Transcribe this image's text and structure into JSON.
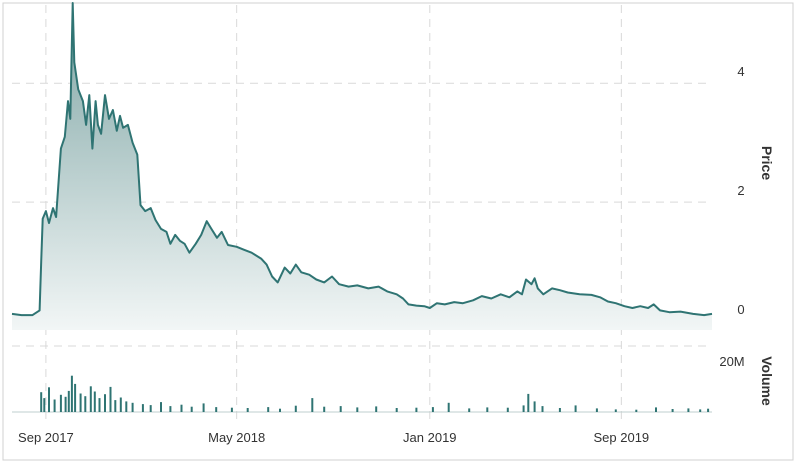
{
  "chart_data": {
    "type": "area",
    "title": "",
    "x_axis": {
      "type": "date",
      "ticks": [
        {
          "date": "2017-09-01",
          "label": "Sep 2017"
        },
        {
          "date": "2018-05-01",
          "label": "May 2018"
        },
        {
          "date": "2019-01-01",
          "label": "Jan 2019"
        },
        {
          "date": "2019-09-01",
          "label": "Sep 2019"
        }
      ],
      "range": [
        "2017-07-20",
        "2019-12-25"
      ],
      "grid": true
    },
    "price_axis": {
      "label": "Price",
      "position": "right",
      "range": [
        -0.15,
        5.4
      ],
      "ticks": [
        {
          "value": 0,
          "label": "0"
        },
        {
          "value": 2,
          "label": "2"
        },
        {
          "value": 4,
          "label": "4"
        }
      ],
      "grid": true
    },
    "volume_axis": {
      "label": "Volume",
      "position": "right",
      "range": [
        0,
        20000000
      ],
      "ticks": [
        {
          "value": 20000000,
          "label": "20M"
        }
      ]
    },
    "colors": {
      "line": "#2f7473",
      "area_top": "#7ea5a4",
      "area_bottom": "#f2f6f6",
      "volume": "#2f7473"
    },
    "series": [
      {
        "kind": "price",
        "points": [
          [
            "2017-07-20",
            0.12
          ],
          [
            "2017-08-01",
            0.1
          ],
          [
            "2017-08-15",
            0.1
          ],
          [
            "2017-08-24",
            0.18
          ],
          [
            "2017-08-26",
            1.0
          ],
          [
            "2017-08-28",
            1.72
          ],
          [
            "2017-09-01",
            1.85
          ],
          [
            "2017-09-05",
            1.65
          ],
          [
            "2017-09-10",
            1.9
          ],
          [
            "2017-09-14",
            1.75
          ],
          [
            "2017-09-20",
            2.9
          ],
          [
            "2017-09-25",
            3.1
          ],
          [
            "2017-09-29",
            3.7
          ],
          [
            "2017-10-02",
            3.4
          ],
          [
            "2017-10-05",
            5.35
          ],
          [
            "2017-10-07",
            4.35
          ],
          [
            "2017-10-12",
            3.9
          ],
          [
            "2017-10-18",
            3.7
          ],
          [
            "2017-10-22",
            3.3
          ],
          [
            "2017-10-26",
            3.8
          ],
          [
            "2017-10-30",
            2.9
          ],
          [
            "2017-11-03",
            3.7
          ],
          [
            "2017-11-06",
            3.3
          ],
          [
            "2017-11-10",
            3.15
          ],
          [
            "2017-11-15",
            3.8
          ],
          [
            "2017-11-20",
            3.4
          ],
          [
            "2017-11-25",
            3.55
          ],
          [
            "2017-11-30",
            3.2
          ],
          [
            "2017-12-04",
            3.45
          ],
          [
            "2017-12-08",
            3.25
          ],
          [
            "2017-12-14",
            3.3
          ],
          [
            "2017-12-20",
            3.0
          ],
          [
            "2017-12-26",
            2.8
          ],
          [
            "2017-12-30",
            1.95
          ],
          [
            "2018-01-05",
            1.85
          ],
          [
            "2018-01-12",
            1.9
          ],
          [
            "2018-01-18",
            1.7
          ],
          [
            "2018-01-25",
            1.55
          ],
          [
            "2018-02-01",
            1.5
          ],
          [
            "2018-02-06",
            1.3
          ],
          [
            "2018-02-12",
            1.45
          ],
          [
            "2018-02-18",
            1.35
          ],
          [
            "2018-02-24",
            1.3
          ],
          [
            "2018-03-02",
            1.15
          ],
          [
            "2018-03-10",
            1.3
          ],
          [
            "2018-03-17",
            1.45
          ],
          [
            "2018-03-24",
            1.68
          ],
          [
            "2018-03-30",
            1.55
          ],
          [
            "2018-04-06",
            1.4
          ],
          [
            "2018-04-12",
            1.5
          ],
          [
            "2018-04-20",
            1.28
          ],
          [
            "2018-05-01",
            1.25
          ],
          [
            "2018-05-10",
            1.2
          ],
          [
            "2018-05-20",
            1.15
          ],
          [
            "2018-06-01",
            1.05
          ],
          [
            "2018-06-08",
            0.95
          ],
          [
            "2018-06-15",
            0.75
          ],
          [
            "2018-06-22",
            0.65
          ],
          [
            "2018-07-01",
            0.9
          ],
          [
            "2018-07-08",
            0.8
          ],
          [
            "2018-07-15",
            0.95
          ],
          [
            "2018-07-22",
            0.82
          ],
          [
            "2018-08-01",
            0.78
          ],
          [
            "2018-08-10",
            0.7
          ],
          [
            "2018-08-20",
            0.65
          ],
          [
            "2018-08-30",
            0.75
          ],
          [
            "2018-09-08",
            0.62
          ],
          [
            "2018-09-20",
            0.58
          ],
          [
            "2018-10-01",
            0.6
          ],
          [
            "2018-10-15",
            0.55
          ],
          [
            "2018-10-28",
            0.58
          ],
          [
            "2018-11-08",
            0.5
          ],
          [
            "2018-11-20",
            0.45
          ],
          [
            "2018-11-28",
            0.38
          ],
          [
            "2018-12-05",
            0.28
          ],
          [
            "2018-12-15",
            0.26
          ],
          [
            "2018-12-25",
            0.25
          ],
          [
            "2019-01-01",
            0.22
          ],
          [
            "2019-01-10",
            0.3
          ],
          [
            "2019-01-20",
            0.28
          ],
          [
            "2019-02-01",
            0.32
          ],
          [
            "2019-02-12",
            0.3
          ],
          [
            "2019-02-25",
            0.35
          ],
          [
            "2019-03-08",
            0.42
          ],
          [
            "2019-03-20",
            0.38
          ],
          [
            "2019-04-01",
            0.45
          ],
          [
            "2019-04-12",
            0.4
          ],
          [
            "2019-04-22",
            0.5
          ],
          [
            "2019-04-28",
            0.45
          ],
          [
            "2019-05-03",
            0.7
          ],
          [
            "2019-05-10",
            0.62
          ],
          [
            "2019-05-14",
            0.72
          ],
          [
            "2019-05-18",
            0.55
          ],
          [
            "2019-05-25",
            0.45
          ],
          [
            "2019-06-05",
            0.55
          ],
          [
            "2019-06-15",
            0.52
          ],
          [
            "2019-06-25",
            0.48
          ],
          [
            "2019-07-10",
            0.45
          ],
          [
            "2019-07-25",
            0.44
          ],
          [
            "2019-08-05",
            0.4
          ],
          [
            "2019-08-15",
            0.33
          ],
          [
            "2019-08-25",
            0.3
          ],
          [
            "2019-09-05",
            0.25
          ],
          [
            "2019-09-15",
            0.22
          ],
          [
            "2019-09-25",
            0.25
          ],
          [
            "2019-10-05",
            0.22
          ],
          [
            "2019-10-12",
            0.28
          ],
          [
            "2019-10-20",
            0.18
          ],
          [
            "2019-11-01",
            0.15
          ],
          [
            "2019-11-15",
            0.16
          ],
          [
            "2019-12-01",
            0.12
          ],
          [
            "2019-12-15",
            0.1
          ],
          [
            "2019-12-25",
            0.12
          ]
        ]
      },
      {
        "kind": "volume",
        "bars": [
          [
            "2017-08-26",
            6000000
          ],
          [
            "2017-08-30",
            4200000
          ],
          [
            "2017-09-05",
            7500000
          ],
          [
            "2017-09-12",
            3800000
          ],
          [
            "2017-09-20",
            5200000
          ],
          [
            "2017-09-26",
            4600000
          ],
          [
            "2017-09-30",
            6400000
          ],
          [
            "2017-10-04",
            11000000
          ],
          [
            "2017-10-08",
            8500000
          ],
          [
            "2017-10-15",
            5600000
          ],
          [
            "2017-10-21",
            4800000
          ],
          [
            "2017-10-28",
            7800000
          ],
          [
            "2017-11-02",
            6200000
          ],
          [
            "2017-11-08",
            4200000
          ],
          [
            "2017-11-15",
            5400000
          ],
          [
            "2017-11-22",
            7600000
          ],
          [
            "2017-11-28",
            3600000
          ],
          [
            "2017-12-05",
            4400000
          ],
          [
            "2017-12-12",
            3200000
          ],
          [
            "2017-12-20",
            2800000
          ],
          [
            "2018-01-02",
            2400000
          ],
          [
            "2018-01-12",
            2100000
          ],
          [
            "2018-01-25",
            3000000
          ],
          [
            "2018-02-06",
            1800000
          ],
          [
            "2018-02-20",
            2200000
          ],
          [
            "2018-03-05",
            1600000
          ],
          [
            "2018-03-20",
            2600000
          ],
          [
            "2018-04-05",
            1500000
          ],
          [
            "2018-04-25",
            1300000
          ],
          [
            "2018-05-15",
            1200000
          ],
          [
            "2018-06-10",
            1500000
          ],
          [
            "2018-06-25",
            1000000
          ],
          [
            "2018-07-15",
            1900000
          ],
          [
            "2018-08-05",
            4200000
          ],
          [
            "2018-08-20",
            1600000
          ],
          [
            "2018-09-10",
            1800000
          ],
          [
            "2018-10-01",
            1400000
          ],
          [
            "2018-10-25",
            1700000
          ],
          [
            "2018-11-20",
            1200000
          ],
          [
            "2018-12-15",
            1300000
          ],
          [
            "2019-01-05",
            1500000
          ],
          [
            "2019-01-25",
            2800000
          ],
          [
            "2019-02-20",
            1100000
          ],
          [
            "2019-03-15",
            1400000
          ],
          [
            "2019-04-10",
            1300000
          ],
          [
            "2019-04-30",
            2000000
          ],
          [
            "2019-05-06",
            5500000
          ],
          [
            "2019-05-14",
            3200000
          ],
          [
            "2019-05-24",
            1800000
          ],
          [
            "2019-06-15",
            1200000
          ],
          [
            "2019-07-05",
            2000000
          ],
          [
            "2019-08-01",
            1100000
          ],
          [
            "2019-08-25",
            800000
          ],
          [
            "2019-09-20",
            700000
          ],
          [
            "2019-10-15",
            1400000
          ],
          [
            "2019-11-05",
            900000
          ],
          [
            "2019-11-25",
            1100000
          ],
          [
            "2019-12-10",
            800000
          ],
          [
            "2019-12-20",
            1000000
          ]
        ]
      }
    ]
  }
}
